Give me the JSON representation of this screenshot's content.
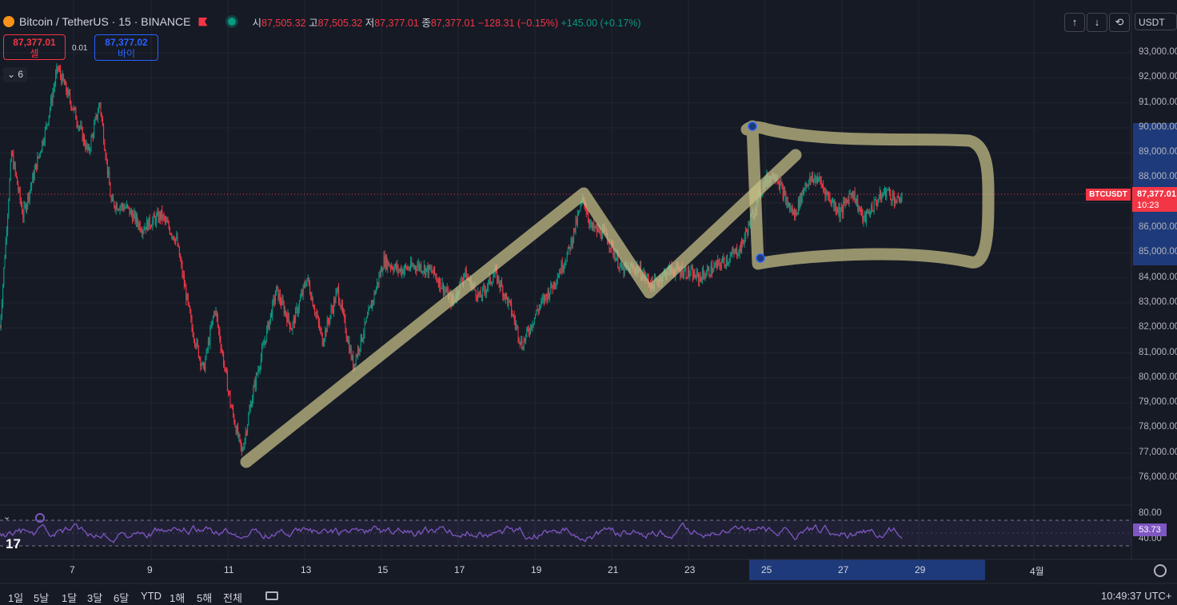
{
  "header": {
    "symbol_title": "Bitcoin / TetherUS · 15 · BINANCE",
    "ohlc": {
      "open_label": "시",
      "open_value": "87,505.32",
      "high_label": "고",
      "high_value": "87,505.32",
      "low_label": "저",
      "low_value": "87,377.01",
      "close_label": "종",
      "close_value": "87,377.01",
      "change": "−128.31 (−0.15%)",
      "volume_change": "+145.00 (+0.17%)"
    }
  },
  "trade": {
    "sell_price": "87,377.01",
    "sell_label": "셀",
    "spread": "0.01",
    "buy_price": "87,377.02",
    "buy_label": "바이"
  },
  "indicators_collapse": {
    "label": "6"
  },
  "toolbar": {
    "currency": "USDT"
  },
  "price_axis": {
    "labels": [
      "93,000.00",
      "92,000.00",
      "91,000.00",
      "90,000.00",
      "89,000.00",
      "88,000.00",
      "87,000.00",
      "86,000.00",
      "85,000.00",
      "84,000.00",
      "83,000.00",
      "82,000.00",
      "81,000.00",
      "80,000.00",
      "79,000.00",
      "78,000.00",
      "77,000.00",
      "76,000.00"
    ],
    "symbol_tag": "BTCUSDT",
    "last_price": "87,377.01",
    "countdown": "10:23"
  },
  "rsi": {
    "value": "53.73",
    "upper": "80.00",
    "lower": "40.00"
  },
  "time_axis": {
    "labels": [
      "7",
      "9",
      "11",
      "13",
      "15",
      "17",
      "19",
      "21",
      "23",
      "25",
      "27",
      "29",
      "4월"
    ]
  },
  "bottom_bar": {
    "ranges": [
      "1일",
      "5날",
      "1달",
      "3달",
      "6달",
      "YTD",
      "1해",
      "5해",
      "전체"
    ],
    "clock": "10:49:37 UTC+"
  },
  "colors": {
    "background": "#161a25",
    "up": "#089981",
    "down": "#f23645",
    "drawing": "#c8c088",
    "rsi": "#7e57c2",
    "highlight": "#1e3a7a"
  },
  "chart_data": {
    "type": "candlestick",
    "ylim": [
      75500,
      93500
    ],
    "x_ticks": [
      "7",
      "9",
      "11",
      "13",
      "15",
      "17",
      "19",
      "21",
      "23",
      "25",
      "27",
      "29",
      "4월"
    ],
    "last_price": 87377.01,
    "path_points": [
      {
        "t": 0.0,
        "p": 82000
      },
      {
        "t": 0.3,
        "p": 89000
      },
      {
        "t": 0.6,
        "p": 86500
      },
      {
        "t": 1.2,
        "p": 90000
      },
      {
        "t": 1.5,
        "p": 92400
      },
      {
        "t": 1.9,
        "p": 90800
      },
      {
        "t": 2.3,
        "p": 89000
      },
      {
        "t": 2.6,
        "p": 91000
      },
      {
        "t": 2.9,
        "p": 87000
      },
      {
        "t": 3.3,
        "p": 86800
      },
      {
        "t": 3.7,
        "p": 86000
      },
      {
        "t": 4.2,
        "p": 86500
      },
      {
        "t": 4.6,
        "p": 85500
      },
      {
        "t": 5.0,
        "p": 82000
      },
      {
        "t": 5.3,
        "p": 80300
      },
      {
        "t": 5.6,
        "p": 82800
      },
      {
        "t": 6.0,
        "p": 79000
      },
      {
        "t": 6.3,
        "p": 77000
      },
      {
        "t": 6.6,
        "p": 79500
      },
      {
        "t": 6.9,
        "p": 81500
      },
      {
        "t": 7.2,
        "p": 83500
      },
      {
        "t": 7.6,
        "p": 82000
      },
      {
        "t": 8.0,
        "p": 84000
      },
      {
        "t": 8.4,
        "p": 81500
      },
      {
        "t": 8.8,
        "p": 83500
      },
      {
        "t": 9.2,
        "p": 80500
      },
      {
        "t": 9.6,
        "p": 82500
      },
      {
        "t": 10.0,
        "p": 84700
      },
      {
        "t": 10.4,
        "p": 84300
      },
      {
        "t": 10.9,
        "p": 84500
      },
      {
        "t": 11.3,
        "p": 84200
      },
      {
        "t": 11.8,
        "p": 83000
      },
      {
        "t": 12.1,
        "p": 84200
      },
      {
        "t": 12.5,
        "p": 83200
      },
      {
        "t": 12.9,
        "p": 84200
      },
      {
        "t": 13.3,
        "p": 82800
      },
      {
        "t": 13.6,
        "p": 81300
      },
      {
        "t": 14.0,
        "p": 82700
      },
      {
        "t": 14.4,
        "p": 83700
      },
      {
        "t": 14.8,
        "p": 85000
      },
      {
        "t": 15.2,
        "p": 87200
      },
      {
        "t": 15.4,
        "p": 86000
      },
      {
        "t": 15.8,
        "p": 85700
      },
      {
        "t": 16.2,
        "p": 84300
      },
      {
        "t": 16.6,
        "p": 84400
      },
      {
        "t": 17.0,
        "p": 83700
      },
      {
        "t": 17.4,
        "p": 84300
      },
      {
        "t": 17.8,
        "p": 84300
      },
      {
        "t": 18.2,
        "p": 84000
      },
      {
        "t": 18.6,
        "p": 84400
      },
      {
        "t": 19.0,
        "p": 84800
      },
      {
        "t": 19.3,
        "p": 85200
      },
      {
        "t": 19.6,
        "p": 86500
      },
      {
        "t": 19.9,
        "p": 87800
      },
      {
        "t": 20.2,
        "p": 88200
      },
      {
        "t": 20.5,
        "p": 87000
      },
      {
        "t": 20.7,
        "p": 86500
      },
      {
        "t": 21.0,
        "p": 87800
      },
      {
        "t": 21.3,
        "p": 88000
      },
      {
        "t": 21.6,
        "p": 87200
      },
      {
        "t": 21.9,
        "p": 86600
      },
      {
        "t": 22.2,
        "p": 87500
      },
      {
        "t": 22.5,
        "p": 86300
      },
      {
        "t": 22.8,
        "p": 87000
      },
      {
        "t": 23.1,
        "p": 87500
      },
      {
        "t": 23.4,
        "p": 87000
      },
      {
        "t": 23.5,
        "p": 87377
      }
    ]
  }
}
